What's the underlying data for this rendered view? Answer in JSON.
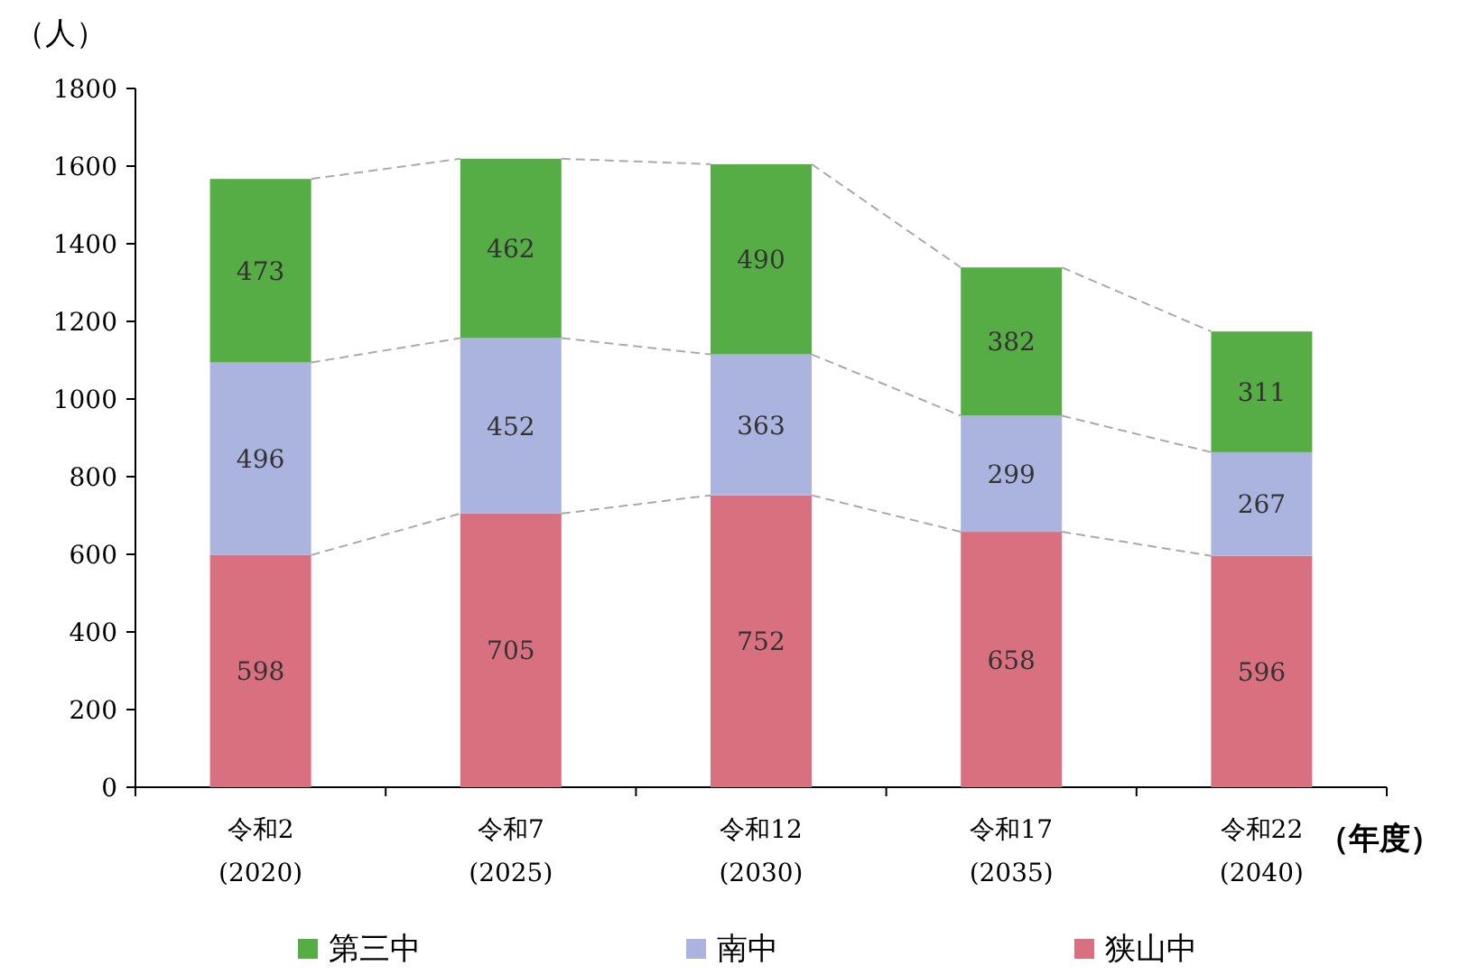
{
  "chart_data": {
    "type": "bar",
    "stacked": true,
    "xlabel": "（年度）",
    "ylabel": "（人）",
    "categories": [
      "令和2 (2020)",
      "令和7 (2025)",
      "令和12 (2030)",
      "令和17 (2035)",
      "令和22 (2040)"
    ],
    "series": [
      {
        "name": "狭山中",
        "color": "#d9707f",
        "values": [
          598,
          705,
          752,
          658,
          596
        ]
      },
      {
        "name": "南中",
        "color": "#aab4de",
        "values": [
          496,
          452,
          363,
          299,
          267
        ]
      },
      {
        "name": "第三中",
        "color": "#56ac45",
        "values": [
          473,
          462,
          490,
          382,
          311
        ]
      }
    ],
    "ylim": [
      0,
      1800
    ],
    "yticks": [
      0,
      200,
      400,
      600,
      800,
      1000,
      1200,
      1400,
      1600,
      1800
    ],
    "data_labels": true,
    "grid": false,
    "legend": "bottom"
  }
}
